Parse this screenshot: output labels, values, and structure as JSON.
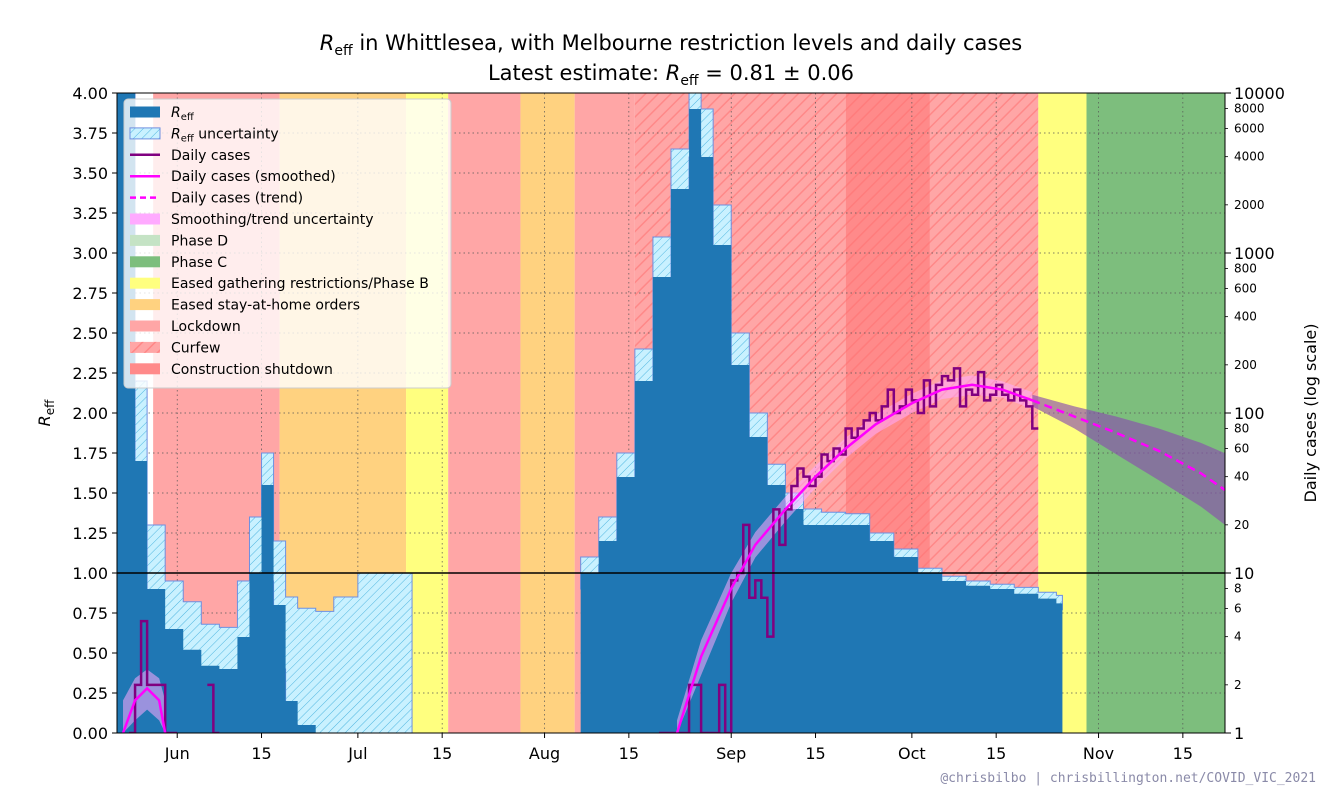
{
  "chart_data": {
    "type": "area",
    "title_parts": {
      "r": "R",
      "sub": "eff",
      "rest": " in Whittlesea, with Melbourne restriction levels and daily cases"
    },
    "subtitle_parts": {
      "lead": "Latest estimate: ",
      "r": "R",
      "sub": "eff",
      "value": " = 0.81 ± 0.06"
    },
    "latest_estimate": {
      "value": 0.81,
      "uncertainty": 0.06
    },
    "ylabel_left_parts": {
      "r": "R",
      "sub": "eff"
    },
    "ylabel_right": "Daily cases (log scale)",
    "credit": "@chrisbilbo | chrisbillington.net/COVID_VIC_2021",
    "x_start": "2021-05-22",
    "x_end": "2021-11-22",
    "ylim_left": [
      0,
      4
    ],
    "ylim_right": [
      1,
      10000
    ],
    "right_scale": "log",
    "grid": true,
    "left_ticks": [
      "0.00",
      "0.25",
      "0.50",
      "0.75",
      "1.00",
      "1.25",
      "1.50",
      "1.75",
      "2.00",
      "2.25",
      "2.50",
      "2.75",
      "3.00",
      "3.25",
      "3.50",
      "3.75",
      "4.00"
    ],
    "left_tick_values": [
      0,
      0.25,
      0.5,
      0.75,
      1,
      1.25,
      1.5,
      1.75,
      2,
      2.25,
      2.5,
      2.75,
      3,
      3.25,
      3.5,
      3.75,
      4
    ],
    "right_major_ticks": [
      {
        "v": 1,
        "label": "1"
      },
      {
        "v": 10,
        "label": "10"
      },
      {
        "v": 100,
        "label": "100"
      },
      {
        "v": 1000,
        "label": "1000"
      },
      {
        "v": 10000,
        "label": "10000"
      }
    ],
    "right_minor_ticks": [
      {
        "v": 2,
        "label": "2"
      },
      {
        "v": 4,
        "label": "4"
      },
      {
        "v": 6,
        "label": "6"
      },
      {
        "v": 8,
        "label": "8"
      },
      {
        "v": 20,
        "label": "20"
      },
      {
        "v": 40,
        "label": "40"
      },
      {
        "v": 60,
        "label": "60"
      },
      {
        "v": 80,
        "label": "80"
      },
      {
        "v": 200,
        "label": "200"
      },
      {
        "v": 400,
        "label": "400"
      },
      {
        "v": 600,
        "label": "600"
      },
      {
        "v": 800,
        "label": "800"
      },
      {
        "v": 2000,
        "label": "2000"
      },
      {
        "v": 4000,
        "label": "4000"
      },
      {
        "v": 6000,
        "label": "6000"
      },
      {
        "v": 8000,
        "label": "8000"
      }
    ],
    "x_ticks": [
      {
        "date": "2021-06-01",
        "label": "Jun"
      },
      {
        "date": "2021-06-15",
        "label": "15"
      },
      {
        "date": "2021-07-01",
        "label": "Jul"
      },
      {
        "date": "2021-07-15",
        "label": "15"
      },
      {
        "date": "2021-08-01",
        "label": "Aug"
      },
      {
        "date": "2021-08-15",
        "label": "15"
      },
      {
        "date": "2021-09-01",
        "label": "Sep"
      },
      {
        "date": "2021-09-15",
        "label": "15"
      },
      {
        "date": "2021-10-01",
        "label": "Oct"
      },
      {
        "date": "2021-10-15",
        "label": "15"
      },
      {
        "date": "2021-11-01",
        "label": "Nov"
      },
      {
        "date": "2021-11-15",
        "label": "15"
      }
    ],
    "restriction_periods": [
      {
        "start": "2021-05-28",
        "end": "2021-06-18",
        "level": "Lockdown"
      },
      {
        "start": "2021-06-18",
        "end": "2021-07-09",
        "level": "Eased stay-at-home orders"
      },
      {
        "start": "2021-07-09",
        "end": "2021-07-16",
        "level": "Eased gathering restrictions/Phase B"
      },
      {
        "start": "2021-07-16",
        "end": "2021-07-28",
        "level": "Lockdown"
      },
      {
        "start": "2021-07-28",
        "end": "2021-08-06",
        "level": "Eased stay-at-home orders"
      },
      {
        "start": "2021-08-06",
        "end": "2021-08-16",
        "level": "Lockdown"
      },
      {
        "start": "2021-08-16",
        "end": "2021-09-20",
        "level": "Curfew"
      },
      {
        "start": "2021-09-20",
        "end": "2021-10-04",
        "level": "Construction shutdown"
      },
      {
        "start": "2021-10-04",
        "end": "2021-10-22",
        "level": "Curfew"
      },
      {
        "start": "2021-10-22",
        "end": "2021-10-30",
        "level": "Eased gathering restrictions/Phase B"
      },
      {
        "start": "2021-10-30",
        "end": "2021-11-22",
        "level": "Phase C"
      }
    ],
    "reff": {
      "dates": [
        "2021-05-22",
        "2021-05-25",
        "2021-05-27",
        "2021-05-30",
        "2021-06-02",
        "2021-06-05",
        "2021-06-08",
        "2021-06-11",
        "2021-06-13",
        "2021-06-15",
        "2021-06-17",
        "2021-06-19",
        "2021-06-21",
        "2021-06-24",
        "2021-06-27",
        "2021-07-01",
        "2021-07-05",
        "2021-07-09",
        "2021-08-07",
        "2021-08-10",
        "2021-08-13",
        "2021-08-16",
        "2021-08-19",
        "2021-08-22",
        "2021-08-25",
        "2021-08-27",
        "2021-08-29",
        "2021-09-01",
        "2021-09-04",
        "2021-09-07",
        "2021-09-10",
        "2021-09-13",
        "2021-09-16",
        "2021-09-20",
        "2021-09-24",
        "2021-09-28",
        "2021-10-02",
        "2021-10-06",
        "2021-10-10",
        "2021-10-14",
        "2021-10-18",
        "2021-10-22",
        "2021-10-25"
      ],
      "values": [
        4.0,
        1.7,
        0.9,
        0.65,
        0.52,
        0.42,
        0.4,
        0.6,
        1.0,
        1.55,
        0.8,
        0.2,
        0.05,
        0.0,
        0.0,
        0.0,
        0.0,
        0.0,
        1.0,
        1.2,
        1.6,
        2.2,
        2.85,
        3.4,
        3.9,
        3.6,
        3.05,
        2.3,
        1.85,
        1.55,
        1.4,
        1.3,
        1.3,
        1.3,
        1.2,
        1.1,
        1.0,
        0.95,
        0.92,
        0.9,
        0.87,
        0.84,
        0.81
      ],
      "lower": [
        4.0,
        1.3,
        0.6,
        0.35,
        0.22,
        0.12,
        0.08,
        0.2,
        0.55,
        0.95,
        0.4,
        0.05,
        0.0,
        0.0,
        0.0,
        0.0,
        0.0,
        0.0,
        0.9,
        1.05,
        1.45,
        2.0,
        2.6,
        3.15,
        3.6,
        3.3,
        2.75,
        2.05,
        1.7,
        1.45,
        1.3,
        1.22,
        1.25,
        1.25,
        1.15,
        1.05,
        0.97,
        0.92,
        0.88,
        0.86,
        0.82,
        0.79,
        0.77
      ],
      "upper": [
        4.0,
        2.2,
        1.3,
        0.95,
        0.82,
        0.68,
        0.66,
        0.95,
        1.35,
        1.75,
        1.2,
        0.85,
        0.78,
        0.76,
        0.85,
        1.0,
        1.0,
        1.0,
        1.1,
        1.35,
        1.75,
        2.4,
        3.1,
        3.65,
        4.0,
        3.9,
        3.3,
        2.5,
        2.0,
        1.68,
        1.5,
        1.4,
        1.38,
        1.37,
        1.25,
        1.15,
        1.03,
        0.98,
        0.95,
        0.93,
        0.91,
        0.88,
        0.86
      ]
    },
    "daily_cases": {
      "dates": [
        "2021-05-24",
        "2021-05-25",
        "2021-05-26",
        "2021-05-27",
        "2021-05-28",
        "2021-05-29",
        "2021-05-30",
        "2021-05-31",
        "2021-06-06",
        "2021-06-07",
        "2021-08-20",
        "2021-08-21",
        "2021-08-22",
        "2021-08-23",
        "2021-08-24",
        "2021-08-25",
        "2021-08-26",
        "2021-08-27",
        "2021-08-28",
        "2021-08-29",
        "2021-08-30",
        "2021-08-31",
        "2021-09-01",
        "2021-09-02",
        "2021-09-03",
        "2021-09-04",
        "2021-09-05",
        "2021-09-06",
        "2021-09-07",
        "2021-09-08",
        "2021-09-09",
        "2021-09-10",
        "2021-09-11",
        "2021-09-12",
        "2021-09-13",
        "2021-09-14",
        "2021-09-15",
        "2021-09-16",
        "2021-09-17",
        "2021-09-18",
        "2021-09-19",
        "2021-09-20",
        "2021-09-21",
        "2021-09-22",
        "2021-09-23",
        "2021-09-24",
        "2021-09-25",
        "2021-09-26",
        "2021-09-27",
        "2021-09-28",
        "2021-09-29",
        "2021-09-30",
        "2021-10-01",
        "2021-10-02",
        "2021-10-03",
        "2021-10-04",
        "2021-10-05",
        "2021-10-06",
        "2021-10-07",
        "2021-10-08",
        "2021-10-09",
        "2021-10-10",
        "2021-10-11",
        "2021-10-12",
        "2021-10-13",
        "2021-10-14",
        "2021-10-15",
        "2021-10-16",
        "2021-10-17",
        "2021-10-18",
        "2021-10-19",
        "2021-10-20",
        "2021-10-21"
      ],
      "values": [
        1,
        2,
        5,
        2,
        2,
        2,
        1,
        1,
        2,
        1,
        1,
        1,
        1,
        1,
        1,
        2,
        2,
        1,
        1,
        1,
        2,
        1,
        9,
        10,
        20,
        7,
        9,
        7,
        4,
        25,
        15,
        25,
        35,
        45,
        40,
        35,
        40,
        55,
        50,
        60,
        55,
        80,
        70,
        80,
        90,
        100,
        90,
        110,
        140,
        100,
        110,
        140,
        120,
        100,
        160,
        110,
        150,
        170,
        160,
        190,
        110,
        140,
        130,
        180,
        120,
        130,
        150,
        130,
        120,
        140,
        120,
        110,
        80
      ]
    },
    "smoothed": {
      "dates": [
        "2021-05-23",
        "2021-05-25",
        "2021-05-27",
        "2021-05-29",
        "2021-05-30",
        "2021-08-23",
        "2021-08-27",
        "2021-09-01",
        "2021-09-05",
        "2021-09-10",
        "2021-09-15",
        "2021-09-20",
        "2021-09-25",
        "2021-10-01",
        "2021-10-06",
        "2021-10-11",
        "2021-10-16",
        "2021-10-21"
      ],
      "values": [
        1,
        1.6,
        1.9,
        1.6,
        1,
        1,
        3,
        8,
        15,
        25,
        40,
        60,
        85,
        115,
        140,
        150,
        140,
        120
      ],
      "lower": [
        1,
        1.2,
        1.4,
        1.2,
        1,
        1,
        2.3,
        6.5,
        12.5,
        21,
        34,
        52,
        74,
        100,
        122,
        130,
        125,
        106
      ],
      "upper": [
        1.6,
        2.2,
        2.5,
        2.2,
        1.6,
        1.2,
        3.8,
        10,
        18,
        30,
        47,
        70,
        98,
        132,
        160,
        172,
        158,
        135
      ]
    },
    "trend": {
      "dates": [
        "2021-10-21",
        "2021-10-28",
        "2021-11-04",
        "2021-11-11",
        "2021-11-18",
        "2021-11-22"
      ],
      "values": [
        120,
        95,
        75,
        58,
        42,
        33
      ],
      "lower": [
        110,
        80,
        55,
        38,
        26,
        20
      ],
      "upper": [
        130,
        110,
        95,
        80,
        65,
        56
      ]
    },
    "legend": [
      {
        "key": "reff",
        "r": "R",
        "sub": "eff",
        "rest": ""
      },
      {
        "key": "reff_unc",
        "r": "R",
        "sub": "eff",
        "rest": " uncertainty"
      },
      {
        "key": "cases",
        "label": "Daily cases"
      },
      {
        "key": "smoothed",
        "label": "Daily cases (smoothed)"
      },
      {
        "key": "trend",
        "label": "Daily cases (trend)"
      },
      {
        "key": "smooth_unc",
        "label": "Smoothing/trend uncertainty"
      },
      {
        "key": "phase_d",
        "label": "Phase D"
      },
      {
        "key": "phase_c",
        "label": "Phase C"
      },
      {
        "key": "phase_b",
        "label": "Eased gathering restrictions/Phase B"
      },
      {
        "key": "eased",
        "label": "Eased stay-at-home orders"
      },
      {
        "key": "lockdown",
        "label": "Lockdown"
      },
      {
        "key": "curfew",
        "label": "Curfew"
      },
      {
        "key": "construction",
        "label": "Construction shutdown"
      }
    ],
    "colors": {
      "reff": "#1f77b4",
      "reff_unc_fill": "#bfefff",
      "cases": "#800080",
      "smoothed": "#ff00ff",
      "smooth_unc": "#ffaaff",
      "phase_d": "#c5e3c5",
      "phase_c": "#7dbe7d",
      "phase_b": "#ffff7f",
      "eased": "#ffd280",
      "lockdown": "#ffa6a6",
      "curfew": "#ffa6a6",
      "construction": "#ff8a8a"
    }
  }
}
